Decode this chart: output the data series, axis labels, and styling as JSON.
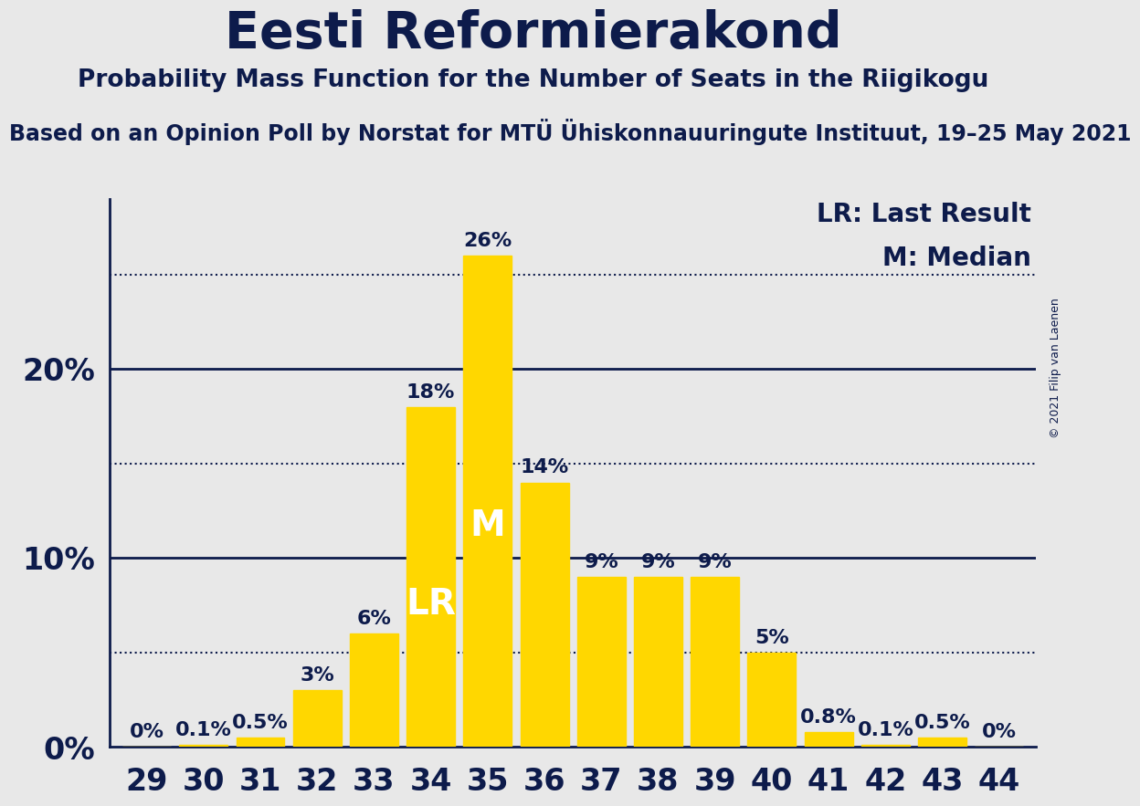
{
  "title": "Eesti Reformierakond",
  "subtitle": "Probability Mass Function for the Number of Seats in the Riigikogu",
  "source": "Based on an Opinion Poll by Norstat for MTÜ Ühiskonnauuringute Instituut, 19–25 May 2021",
  "copyright": "© 2021 Filip van Laenen",
  "seats": [
    29,
    30,
    31,
    32,
    33,
    34,
    35,
    36,
    37,
    38,
    39,
    40,
    41,
    42,
    43,
    44
  ],
  "probabilities": [
    0.0,
    0.1,
    0.5,
    3.0,
    6.0,
    18.0,
    26.0,
    14.0,
    9.0,
    9.0,
    9.0,
    5.0,
    0.8,
    0.1,
    0.5,
    0.0
  ],
  "bar_color": "#FFD700",
  "background_color": "#E8E8E8",
  "text_color": "#0D1B4B",
  "lr_seat": 34,
  "median_seat": 35,
  "legend_lr": "LR: Last Result",
  "legend_m": "M: Median",
  "yticks": [
    0,
    10,
    20
  ],
  "ytick_labels": [
    "0%",
    "10%",
    "20%"
  ],
  "dotted_lines": [
    5,
    15,
    25
  ],
  "ylim": [
    0,
    29
  ],
  "title_fontsize": 40,
  "subtitle_fontsize": 19,
  "source_fontsize": 17,
  "bar_label_fontsize": 16,
  "axis_label_fontsize": 24,
  "legend_fontsize": 20,
  "ytick_fontsize": 24,
  "lr_label_fontsize": 28,
  "m_label_fontsize": 28
}
